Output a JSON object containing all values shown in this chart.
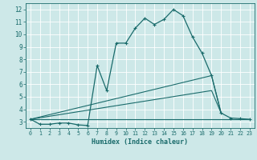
{
  "xlabel": "Humidex (Indice chaleur)",
  "background_color": "#cde8e8",
  "grid_color": "#ffffff",
  "line_color": "#1a6b6b",
  "xlim": [
    -0.5,
    23.5
  ],
  "ylim": [
    2.5,
    12.5
  ],
  "xticks": [
    0,
    1,
    2,
    3,
    4,
    5,
    6,
    7,
    8,
    9,
    10,
    11,
    12,
    13,
    14,
    15,
    16,
    17,
    18,
    19,
    20,
    21,
    22,
    23
  ],
  "yticks": [
    3,
    4,
    5,
    6,
    7,
    8,
    9,
    10,
    11,
    12
  ],
  "series_main": {
    "x": [
      0,
      1,
      2,
      3,
      4,
      5,
      6,
      7,
      8,
      9,
      10,
      11,
      12,
      13,
      14,
      15,
      16,
      17,
      18,
      19,
      20,
      21,
      22,
      23
    ],
    "y": [
      3.2,
      2.8,
      2.8,
      2.9,
      2.9,
      2.75,
      2.7,
      7.5,
      5.5,
      9.3,
      9.3,
      10.5,
      11.3,
      10.8,
      11.2,
      12.0,
      11.5,
      9.8,
      8.5,
      6.7,
      3.7,
      3.3,
      3.25,
      3.2
    ]
  },
  "series_extra": [
    {
      "x": [
        0,
        19,
        20
      ],
      "y": [
        3.2,
        6.7,
        3.7
      ]
    },
    {
      "x": [
        0,
        19,
        20
      ],
      "y": [
        3.2,
        5.5,
        3.7
      ]
    },
    {
      "x": [
        0,
        23
      ],
      "y": [
        3.2,
        3.2
      ]
    }
  ]
}
